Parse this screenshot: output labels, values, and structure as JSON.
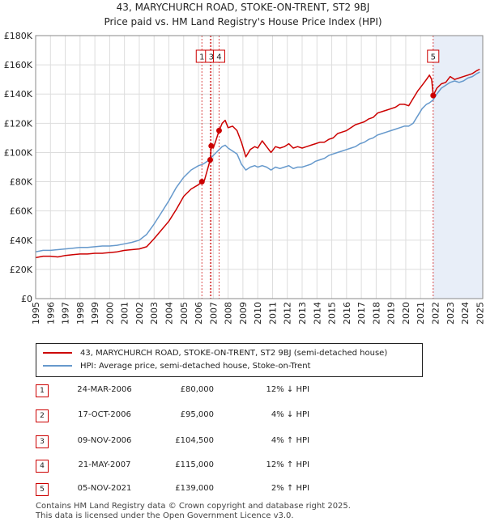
{
  "title_line1": "43, MARYCHURCH ROAD, STOKE-ON-TRENT, ST2 9BJ",
  "title_line2": "Price paid vs. HM Land Registry's House Price Index (HPI)",
  "colors": {
    "property": "#cc0000",
    "hpi": "#6699cc",
    "shade": "#e8eef8",
    "grid": "#dddddd"
  },
  "chart_data": {
    "type": "line",
    "title": "43, MARYCHURCH ROAD, STOKE-ON-TRENT, ST2 9BJ",
    "subtitle": "Price paid vs. HM Land Registry's House Price Index (HPI)",
    "xlabel": "",
    "ylabel": "",
    "xlim": [
      1995,
      2025.2
    ],
    "ylim": [
      0,
      180000
    ],
    "yticks": [
      0,
      20000,
      40000,
      60000,
      80000,
      100000,
      120000,
      140000,
      160000,
      180000
    ],
    "ytick_labels": [
      "£0",
      "£20K",
      "£40K",
      "£60K",
      "£80K",
      "£100K",
      "£120K",
      "£140K",
      "£160K",
      "£180K"
    ],
    "xticks": [
      1995,
      1996,
      1997,
      1998,
      1999,
      2000,
      2001,
      2002,
      2003,
      2004,
      2005,
      2006,
      2007,
      2008,
      2009,
      2010,
      2011,
      2012,
      2013,
      2014,
      2015,
      2016,
      2017,
      2018,
      2019,
      2020,
      2021,
      2022,
      2023,
      2024,
      2025
    ],
    "grid": true,
    "shaded_region": [
      2021.85,
      2025.2
    ],
    "series": [
      {
        "name": "43, MARYCHURCH ROAD, STOKE-ON-TRENT, ST2 9BJ (semi-detached house)",
        "x": [
          1995.0,
          1995.5,
          1996.0,
          1996.5,
          1997.0,
          1997.5,
          1998.0,
          1998.5,
          1999.0,
          1999.5,
          2000.0,
          2000.5,
          2001.0,
          2001.5,
          2002.0,
          2002.5,
          2003.0,
          2003.5,
          2004.0,
          2004.5,
          2005.0,
          2005.5,
          2006.0,
          2006.23,
          2006.4,
          2006.6,
          2006.79,
          2006.86,
          2007.0,
          2007.2,
          2007.39,
          2007.6,
          2007.8,
          2008.0,
          2008.3,
          2008.6,
          2008.9,
          2009.2,
          2009.5,
          2009.8,
          2010.0,
          2010.3,
          2010.6,
          2010.9,
          2011.2,
          2011.5,
          2011.8,
          2012.1,
          2012.4,
          2012.7,
          2013.0,
          2013.3,
          2013.6,
          2013.9,
          2014.2,
          2014.5,
          2014.8,
          2015.1,
          2015.4,
          2015.7,
          2016.0,
          2016.3,
          2016.6,
          2016.9,
          2017.2,
          2017.5,
          2017.8,
          2018.1,
          2018.4,
          2018.7,
          2019.0,
          2019.3,
          2019.6,
          2019.9,
          2020.2,
          2020.5,
          2020.8,
          2021.1,
          2021.4,
          2021.6,
          2021.75,
          2021.85,
          2022.1,
          2022.4,
          2022.7,
          2023.0,
          2023.3,
          2023.6,
          2023.9,
          2024.2,
          2024.5,
          2024.8,
          2025.0
        ],
        "values": [
          28000,
          29000,
          29000,
          28500,
          29500,
          30000,
          30500,
          30500,
          31000,
          31000,
          31500,
          32000,
          33000,
          33500,
          34000,
          35500,
          41000,
          47000,
          53000,
          61000,
          70000,
          75000,
          78000,
          80000,
          81000,
          88000,
          95000,
          104500,
          103000,
          109000,
          115000,
          120000,
          122000,
          117000,
          118000,
          115000,
          107000,
          97000,
          102000,
          104000,
          103000,
          108000,
          104000,
          100000,
          104000,
          103000,
          104000,
          106000,
          103000,
          104000,
          103000,
          104000,
          105000,
          106000,
          107000,
          107000,
          109000,
          110000,
          113000,
          114000,
          115000,
          117000,
          119000,
          120000,
          121000,
          123000,
          124000,
          127000,
          128000,
          129000,
          130000,
          131000,
          133000,
          133000,
          132000,
          137000,
          142000,
          146000,
          150000,
          153000,
          150000,
          139000,
          144000,
          147000,
          148000,
          152000,
          150000,
          151000,
          152000,
          153000,
          154000,
          156000,
          157000
        ]
      },
      {
        "name": "HPI: Average price, semi-detached house, Stoke-on-Trent",
        "x": [
          1995.0,
          1995.5,
          1996.0,
          1996.5,
          1997.0,
          1997.5,
          1998.0,
          1998.5,
          1999.0,
          1999.5,
          2000.0,
          2000.5,
          2001.0,
          2001.5,
          2002.0,
          2002.5,
          2003.0,
          2003.5,
          2004.0,
          2004.5,
          2005.0,
          2005.5,
          2006.0,
          2006.3,
          2006.6,
          2006.8,
          2007.0,
          2007.2,
          2007.4,
          2007.6,
          2007.8,
          2008.0,
          2008.3,
          2008.6,
          2008.9,
          2009.2,
          2009.5,
          2009.8,
          2010.0,
          2010.3,
          2010.6,
          2010.9,
          2011.2,
          2011.5,
          2011.8,
          2012.1,
          2012.4,
          2012.7,
          2013.0,
          2013.3,
          2013.6,
          2013.9,
          2014.2,
          2014.5,
          2014.8,
          2015.1,
          2015.4,
          2015.7,
          2016.0,
          2016.3,
          2016.6,
          2016.9,
          2017.2,
          2017.5,
          2017.8,
          2018.1,
          2018.4,
          2018.7,
          2019.0,
          2019.3,
          2019.6,
          2019.9,
          2020.2,
          2020.5,
          2020.8,
          2021.1,
          2021.4,
          2021.6,
          2021.85,
          2022.1,
          2022.4,
          2022.7,
          2023.0,
          2023.3,
          2023.6,
          2023.9,
          2024.2,
          2024.5,
          2024.8,
          2025.0
        ],
        "values": [
          32000,
          33000,
          33000,
          33500,
          34000,
          34500,
          35000,
          35000,
          35500,
          36000,
          36000,
          36500,
          37500,
          38500,
          40000,
          44000,
          51000,
          59000,
          67000,
          76000,
          83000,
          88000,
          91000,
          92000,
          94000,
          96000,
          98000,
          100000,
          102000,
          104000,
          105000,
          103000,
          101000,
          99000,
          92000,
          88000,
          90000,
          91000,
          90000,
          91000,
          90000,
          88000,
          90000,
          89000,
          90000,
          91000,
          89000,
          90000,
          90000,
          91000,
          92000,
          94000,
          95000,
          96000,
          98000,
          99000,
          100000,
          101000,
          102000,
          103000,
          104000,
          106000,
          107000,
          109000,
          110000,
          112000,
          113000,
          114000,
          115000,
          116000,
          117000,
          118000,
          118000,
          120000,
          125000,
          130000,
          133000,
          134000,
          136000,
          140000,
          144000,
          146000,
          148000,
          149000,
          148000,
          149000,
          151000,
          152000,
          154000,
          155000
        ]
      }
    ],
    "sales": [
      {
        "label": "1",
        "x": 2006.23,
        "value": 80000
      },
      {
        "label": "2",
        "x": 2006.79,
        "value": 95000
      },
      {
        "label": "3",
        "x": 2006.86,
        "value": 104500
      },
      {
        "label": "4",
        "x": 2007.39,
        "value": 115000
      },
      {
        "label": "5",
        "x": 2021.85,
        "value": 139000
      }
    ],
    "marker_labels": [
      {
        "text": "1",
        "x": 2006.23
      },
      {
        "text": "3",
        "x": 2006.86
      },
      {
        "text": "4",
        "x": 2007.39
      },
      {
        "text": "5",
        "x": 2021.85
      }
    ]
  },
  "legend": {
    "property_label": "43, MARYCHURCH ROAD, STOKE-ON-TRENT, ST2 9BJ (semi-detached house)",
    "hpi_label": "HPI: Average price, semi-detached house, Stoke-on-Trent"
  },
  "transactions": [
    {
      "num": "1",
      "date": "24-MAR-2006",
      "price": "£80,000",
      "pct": "12% ↓ HPI"
    },
    {
      "num": "2",
      "date": "17-OCT-2006",
      "price": "£95,000",
      "pct": "4% ↓ HPI"
    },
    {
      "num": "3",
      "date": "09-NOV-2006",
      "price": "£104,500",
      "pct": "4% ↑ HPI"
    },
    {
      "num": "4",
      "date": "21-MAY-2007",
      "price": "£115,000",
      "pct": "12% ↑ HPI"
    },
    {
      "num": "5",
      "date": "05-NOV-2021",
      "price": "£139,000",
      "pct": "2% ↑ HPI"
    }
  ],
  "footer": {
    "line1": "Contains HM Land Registry data © Crown copyright and database right 2025.",
    "line2": "This data is licensed under the Open Government Licence v3.0."
  }
}
